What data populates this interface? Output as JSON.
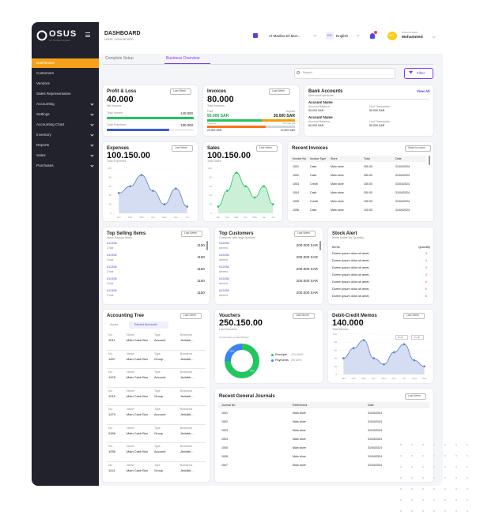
{
  "sidebar": {
    "logo": "OSUS",
    "tagline": "for computer system",
    "menu": [
      "Dashboard",
      "Customers",
      "Vendors",
      "Sales Representative",
      "Accounting",
      "Settings",
      "Accounting Chart",
      "Inventory",
      "Reports",
      "Sales",
      "Purchases"
    ]
  },
  "header": {
    "title": "DASHBOARD",
    "breadcrumb": "HOME / DASHBOARD",
    "company": "Al-Madina El-Mon...",
    "lang_code": "EN",
    "language": "English",
    "avatar": "MO",
    "welcome": "Welcome Back",
    "user": "Mohammed"
  },
  "tabs": [
    "Complete Setup",
    "Business Overview"
  ],
  "search_placeholder": "Search...",
  "filter": "Filter",
  "profit_loss": {
    "title": "Profit & Loss",
    "period": "Last Week",
    "amount": "40.000",
    "caption": "Net Income",
    "bars": {
      "categories": [
        "Total Income",
        "Total Expenses"
      ],
      "values": [
        140000,
        100000
      ],
      "value_labels": [
        "140.000",
        "100.000"
      ],
      "colors": [
        "#22c55e",
        "#3b5bdb"
      ]
    }
  },
  "invoices": {
    "title": "Invoices",
    "period": "Last Week",
    "amount": "80.000",
    "caption": "Total Invoices",
    "status": [
      {
        "name": "Paid",
        "value": 50000,
        "value_label": "50.000 SAR",
        "color": "#22c55e"
      },
      {
        "name": "Unpaid",
        "value": 30000,
        "value_label": "30.000 SAR",
        "color": "#f59e0b"
      }
    ],
    "due": [
      {
        "name": "Overdue",
        "value": 20000,
        "value_label": "20.000 SAR",
        "color": "#f97316"
      },
      {
        "name": "Not due yet",
        "value": 10000,
        "value_label": "10.000 SAR",
        "color": "#d1d5db"
      }
    ]
  },
  "bank_accounts": {
    "title": "Bank Accounts",
    "subtitle": "Main bank accounts",
    "link": "View All",
    "columns": [
      "Account Balance",
      "Last Transaction"
    ],
    "accounts": [
      {
        "name": "Account Name",
        "balance": "50.000 SAR",
        "last": "50.000 SAR"
      },
      {
        "name": "Account Name",
        "balance": "50.000 SAR",
        "last": "50.000 SAR"
      }
    ]
  },
  "expenses": {
    "title": "Expenses",
    "period": "Last Week",
    "amount": "100.150.00",
    "caption": "Total Expenses",
    "chart": {
      "type": "line",
      "categories": [
        "Jan",
        "Feb",
        "Mar",
        "Apr",
        "May",
        "Jun",
        "Jul"
      ],
      "values": [
        45,
        60,
        85,
        50,
        20,
        55,
        15
      ],
      "ylim": [
        0,
        100
      ],
      "yticks": [
        0,
        20,
        40,
        60,
        80,
        100
      ],
      "color": "#5b7fc4",
      "fill": "#c9d5ee"
    }
  },
  "sales": {
    "title": "Sales",
    "period": "Last Week",
    "amount": "100.150.00",
    "caption": "Total Sales",
    "chart": {
      "type": "line",
      "categories": [
        "Jan",
        "Feb",
        "Mar",
        "Apr",
        "May",
        "Jun",
        "Jul"
      ],
      "values": [
        15,
        50,
        90,
        60,
        35,
        60,
        20
      ],
      "ylim": [
        0,
        100
      ],
      "yticks": [
        0,
        20,
        40,
        60,
        80,
        100
      ],
      "color": "#22c55e",
      "fill": "#bfeccd"
    }
  },
  "recent_invoices": {
    "title": "Recent Invoices",
    "dropdown": "Sales Invoices",
    "columns": [
      "Invoice No.",
      "Invoice Type",
      "Store",
      "Total",
      "Date"
    ],
    "rows": [
      [
        "1001",
        "Cash",
        "Main store",
        "200.00",
        "31/04/2024"
      ],
      [
        "1002",
        "Cash",
        "Main store",
        "250.00",
        "31/04/2024"
      ],
      [
        "1003",
        "Credit",
        "Main store",
        "150.00",
        "31/04/2024"
      ],
      [
        "1004",
        "Cash",
        "Main store",
        "200.00",
        "31/04/2024"
      ],
      [
        "1005",
        "Credit",
        "Main store",
        "150.00",
        "31/04/2024"
      ],
      [
        "1006",
        "Cash",
        "Main store",
        "100.00",
        "31/04/2024"
      ]
    ]
  },
  "top_selling": {
    "title": "Top Selling Items",
    "subtitle": "Items Popular Items",
    "period": "Last Week",
    "items": [
      [
        "#12456",
        "Chair",
        "1150"
      ],
      [
        "#12456",
        "Chair",
        "1150"
      ],
      [
        "#12456",
        "Chair",
        "1150"
      ],
      [
        "#12456",
        "Chair",
        "1150"
      ],
      [
        "#12456",
        "Chair",
        "1150"
      ]
    ]
  },
  "top_customers": {
    "title": "Top Customers",
    "subtitle": "Customer with large invoices",
    "period": "Last Week",
    "items": [
      [
        "#12456",
        "ahmed",
        "200.000 SAR"
      ],
      [
        "#12456",
        "ahmed",
        "200.000 SAR"
      ],
      [
        "#12456",
        "ahmed",
        "200.000 SAR"
      ],
      [
        "#12456",
        "ahmed",
        "200.000 SAR"
      ],
      [
        "#12456",
        "ahmed",
        "200.000 SAR"
      ]
    ]
  },
  "stock_alert": {
    "title": "Stock Alert",
    "subtitle": "Items Under the Quantity",
    "columns": [
      "Items",
      "Quantity"
    ],
    "rows": [
      [
        "Dorem ipsum dolor sit amet,",
        "3"
      ],
      [
        "Dorem ipsum dolor sit amet,",
        "4"
      ],
      [
        "Dorem ipsum dolor sit amet,",
        "5"
      ],
      [
        "Dorem ipsum dolor sit amet,",
        "3"
      ],
      [
        "Dorem ipsum dolor sit amet,",
        "6"
      ],
      [
        "Dorem ipsum dolor sit amet,",
        "5"
      ],
      [
        "Dorem ipsum dolor sit amet,",
        "6"
      ]
    ]
  },
  "accounting_tree": {
    "title": "Accounting Tree",
    "period": "Last Week",
    "tabs": [
      "Nodes",
      "Recent Accounts"
    ],
    "columns": [
      "No.",
      "Name",
      "Type",
      "Branches"
    ],
    "rows": [
      [
        "1011",
        "Main Cash Box",
        "Account",
        "Jeddah,..."
      ],
      [
        "1457",
        "Main Cash Box",
        "Group",
        "Jeddah,..."
      ],
      [
        "1478",
        "Main Cash Box",
        "Account",
        "Jeddah,..."
      ],
      [
        "1015",
        "Main Cash Box",
        "Group",
        "Jeddah,..."
      ],
      [
        "1479",
        "Main Cash Box",
        "Account",
        "Jeddah,..."
      ],
      [
        "2456",
        "Main Cash Box",
        "Group",
        "Jeddah,..."
      ],
      [
        "1056",
        "Main Cash Box",
        "Account",
        "Jeddah,..."
      ],
      [
        "1114",
        "Main Cash Box",
        "Group",
        "Jeddah,..."
      ]
    ]
  },
  "vouchers": {
    "title": "Vouchers",
    "period": "Last Month",
    "amount": "250.150.00",
    "caption": "Last Vouchers",
    "note": "All Vouchers on last 28 days",
    "chart": {
      "type": "pie",
      "series": [
        {
          "name": "Payments",
          "value": 25,
          "value_label": "25%",
          "color": "#3b82f6",
          "detail": "3% 40%"
        },
        {
          "name": "Receipts",
          "value": 75,
          "value_label": "75%",
          "color": "#22c55e",
          "detail": "17% 60%"
        }
      ]
    }
  },
  "debit_credit": {
    "title": "Debit-Credit Memos",
    "period": "Last Week",
    "amount": "140.000",
    "caption": "Total Memos",
    "legend": [
      "Debit",
      "Credit"
    ],
    "chart": {
      "type": "line",
      "categories": [
        "Jan",
        "Feb",
        "Mar",
        "Apr",
        "May",
        "Jun",
        "Jul",
        "Aug",
        "Sep"
      ],
      "values": [
        40,
        65,
        85,
        40,
        25,
        55,
        75,
        35,
        20
      ],
      "ylim": [
        0,
        100
      ],
      "yticks": [
        0,
        20,
        40,
        60,
        80,
        100
      ],
      "color": "#5b7fc4",
      "fill": "#c9d5ee"
    }
  },
  "general_journals": {
    "title": "Recent General Journals",
    "period": "Last Week",
    "columns": [
      "Journal No.",
      "References",
      "Date"
    ],
    "rows": [
      [
        "1001",
        "Main store",
        "31/04/2024"
      ],
      [
        "1002",
        "Main store",
        "31/04/2024"
      ],
      [
        "1003",
        "Main store",
        "31/04/2024"
      ],
      [
        "1004",
        "Main store",
        "31/04/2024"
      ],
      [
        "1005",
        "Main store",
        "31/04/2024"
      ],
      [
        "1006",
        "Main store",
        "31/04/2024"
      ],
      [
        "1007",
        "Main store",
        "31/04/2024"
      ]
    ]
  }
}
